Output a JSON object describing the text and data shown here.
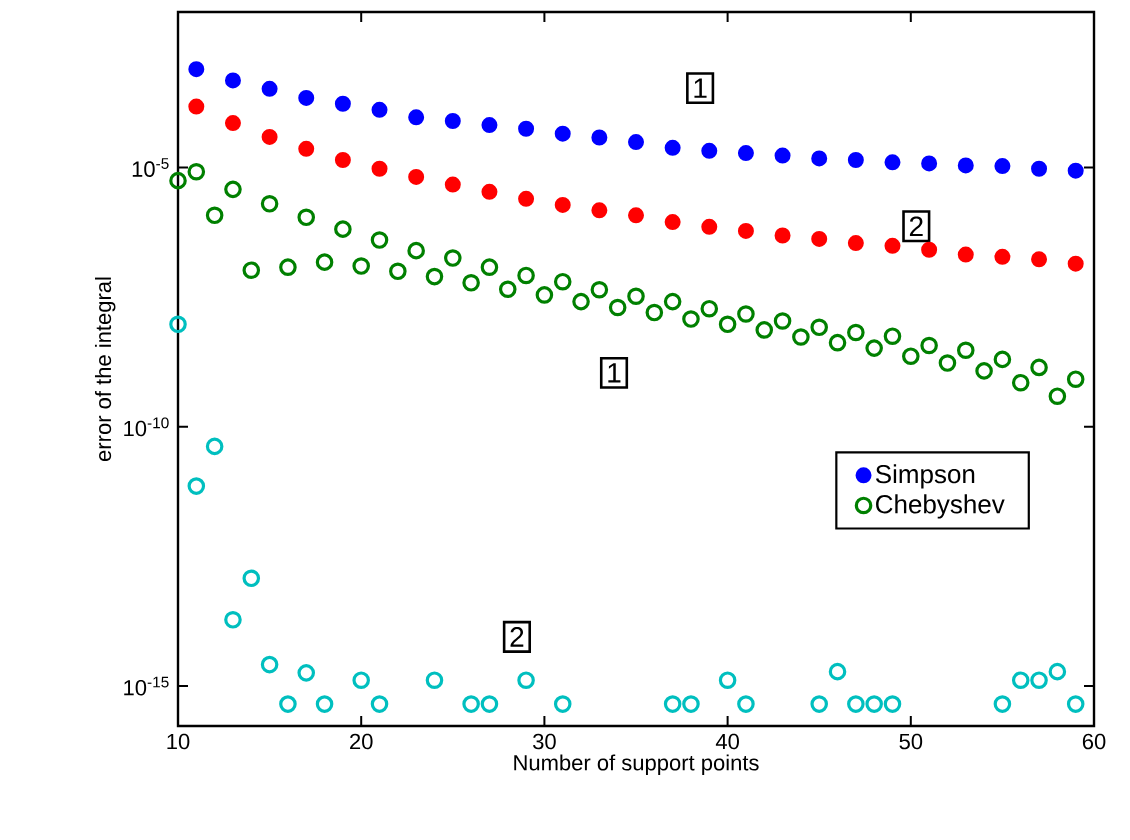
{
  "chart_data": {
    "type": "scatter",
    "xlabel": "Number of support points",
    "ylabel": "error of the integral",
    "xlim": [
      10,
      60
    ],
    "xticks": [
      10,
      20,
      30,
      40,
      50,
      60
    ],
    "ylim": [
      1.7e-16,
      0.01
    ],
    "yticks": [
      {
        "value": 1e-15,
        "label": "10$^{-15}$"
      },
      {
        "value": 1e-10,
        "label": "10$^{-10}$"
      },
      {
        "value": 1e-05,
        "label": "10$^{-5}$"
      }
    ],
    "log": "y",
    "legend": "right",
    "marker": "circle",
    "series": [
      {
        "name": "Simpson",
        "color": "#0000ff",
        "marker": "dot",
        "x": [
          11,
          13,
          15,
          17,
          19,
          21,
          23,
          25,
          27,
          29,
          31,
          33,
          35,
          37,
          39,
          41,
          43,
          45,
          47,
          49,
          51,
          53,
          55,
          57,
          59
        ],
        "values": [
          0.00079,
          0.00048,
          0.00033,
          0.00022,
          0.00017,
          0.00013,
          9.3e-05,
          7.9e-05,
          6.6e-05,
          5.6e-05,
          4.5e-05,
          3.8e-05,
          3.1e-05,
          2.4e-05,
          2.1e-05,
          1.9e-05,
          1.7e-05,
          1.5e-05,
          1.4e-05,
          1.26e-05,
          1.2e-05,
          1.1e-05,
          1.07e-05,
          9.5e-06,
          8.7e-06
        ]
      },
      {
        "name": "Chebyshev",
        "color": "#008000",
        "x": [
          10,
          11,
          12,
          13,
          14,
          15,
          16,
          17,
          18,
          19,
          20,
          21,
          22,
          23,
          24,
          25,
          26,
          27,
          28,
          29,
          30,
          31,
          32,
          33,
          34,
          35,
          36,
          37,
          38,
          39,
          40,
          41,
          42,
          43,
          44,
          45,
          46,
          47,
          48,
          49,
          50,
          51,
          52,
          53,
          54,
          55,
          56,
          57,
          58,
          59
        ],
        "values": [
          5.6e-06,
          8.3e-06,
          1.2e-06,
          3.8e-06,
          1.05e-07,
          2e-06,
          1.2e-07,
          1.1e-06,
          1.5e-07,
          6.5e-07,
          1.26e-07,
          4e-07,
          1e-07,
          2.5e-07,
          7.9e-08,
          1.8e-07,
          6e-08,
          1.2e-07,
          4.5e-08,
          8.3e-08,
          3.5e-08,
          6.3e-08,
          2.6e-08,
          4.4e-08,
          2e-08,
          3.3e-08,
          1.6e-08,
          2.6e-08,
          1.2e-08,
          1.9e-08,
          9.5e-09,
          1.5e-08,
          7.4e-09,
          1.1e-08,
          5.4e-09,
          8.3e-09,
          4.2e-09,
          6.6e-09,
          3.3e-09,
          5.6e-09,
          2.3e-09,
          3.7e-09,
          1.7e-09,
          3e-09,
          1.2e-09,
          2e-09,
          7.1e-10,
          1.4e-09,
          3.9e-10,
          8.3e-10
        ]
      },
      {
        "color": "#ff0000",
        "marker": "dot",
        "x": [
          11,
          13,
          15,
          17,
          19,
          21,
          23,
          25,
          27,
          29,
          31,
          33,
          35,
          37,
          39,
          41,
          43,
          45,
          47,
          49,
          51,
          53,
          55,
          57,
          59
        ],
        "values": [
          0.00015,
          7.2e-05,
          3.9e-05,
          2.3e-05,
          1.4e-05,
          9.5e-06,
          6.6e-06,
          4.7e-06,
          3.4e-06,
          2.5e-06,
          1.9e-06,
          1.5e-06,
          1.2e-06,
          8.9e-07,
          7.2e-07,
          6e-07,
          4.9e-07,
          4.2e-07,
          3.5e-07,
          3.1e-07,
          2.6e-07,
          2.1e-07,
          1.9e-07,
          1.7e-07,
          1.4e-07
        ]
      },
      {
        "color": "#00bfbf",
        "x": [
          10,
          11,
          12,
          13,
          14,
          15,
          16,
          17,
          18,
          20,
          21,
          24,
          26,
          27,
          29,
          31,
          37,
          38,
          40,
          41,
          45,
          46,
          47,
          48,
          49,
          55,
          56,
          57,
          58,
          59
        ],
        "values": [
          9.5e-09,
          7.2e-12,
          4.2e-11,
          1.9e-14,
          1.2e-13,
          2.6e-15,
          4.5e-16,
          1.8e-15,
          4.5e-16,
          1.3e-15,
          4.5e-16,
          1.3e-15,
          4.5e-16,
          4.5e-16,
          1.3e-15,
          4.5e-16,
          4.5e-16,
          4.5e-16,
          1.3e-15,
          4.5e-16,
          4.5e-16,
          1.9e-15,
          4.5e-16,
          4.5e-16,
          4.5e-16,
          4.5e-16,
          1.3e-15,
          1.3e-15,
          1.9e-15,
          4.5e-16
        ]
      }
    ],
    "annotations": [
      {
        "text": "1",
        "x": 38.5,
        "y": 0.00034
      },
      {
        "text": "2",
        "x": 50.3,
        "y": 7.4e-07
      },
      {
        "text": "1",
        "x": 33.8,
        "y": 1.1e-09
      },
      {
        "text": "2",
        "x": 28.5,
        "y": 8.9e-15
      }
    ]
  }
}
